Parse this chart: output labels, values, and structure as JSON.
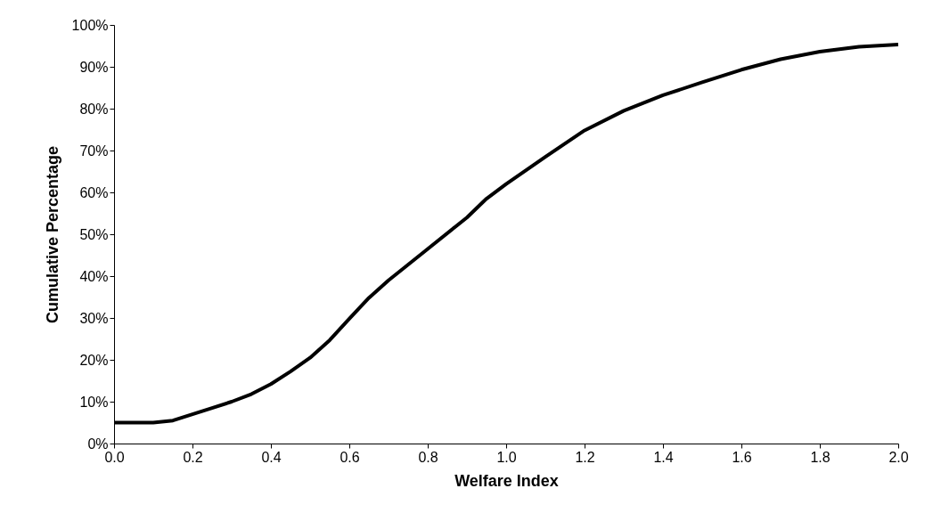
{
  "chart_data": {
    "type": "line",
    "xlabel": "Welfare Index",
    "ylabel": "Cumulative Percentage",
    "x": [
      0,
      0.05,
      0.1,
      0.15,
      0.2,
      0.25,
      0.3,
      0.35,
      0.4,
      0.45,
      0.5,
      0.55,
      0.6,
      0.65,
      0.7,
      0.8,
      0.9,
      0.95,
      1.0,
      1.1,
      1.2,
      1.3,
      1.4,
      1.5,
      1.6,
      1.7,
      1.8,
      1.9,
      2.0
    ],
    "series": [
      {
        "color": "#000000",
        "values": [
          5,
          5,
          5,
          5.5,
          7,
          8.5,
          10,
          11.8,
          14.2,
          17.2,
          20.5,
          24.7,
          29.8,
          34.8,
          39,
          46.5,
          54,
          58.5,
          62,
          68.5,
          74.8,
          79.5,
          83.2,
          86.3,
          89.3,
          91.8,
          93.6,
          94.8,
          95.3
        ]
      }
    ],
    "xlim": [
      0,
      2
    ],
    "xticks": [
      {
        "value": 0,
        "label": "0.0"
      },
      {
        "value": 0.2,
        "label": "0.2"
      },
      {
        "value": 0.4,
        "label": "0.4"
      },
      {
        "value": 0.6,
        "label": "0.6"
      },
      {
        "value": 0.8,
        "label": "0.8"
      },
      {
        "value": 1,
        "label": "1.0"
      },
      {
        "value": 1.2,
        "label": "1.2"
      },
      {
        "value": 1.4,
        "label": "1.4"
      },
      {
        "value": 1.6,
        "label": "1.6"
      },
      {
        "value": 1.8,
        "label": "1.8"
      },
      {
        "value": 2,
        "label": "2.0"
      }
    ],
    "ylim": [
      0,
      100
    ],
    "yticks": [
      {
        "value": 0,
        "label": "0%"
      },
      {
        "value": 10,
        "label": "10%"
      },
      {
        "value": 20,
        "label": "20%"
      },
      {
        "value": 30,
        "label": "30%"
      },
      {
        "value": 40,
        "label": "40%"
      },
      {
        "value": 50,
        "label": "50%"
      },
      {
        "value": 60,
        "label": "60%"
      },
      {
        "value": 70,
        "label": "70%"
      },
      {
        "value": 80,
        "label": "80%"
      },
      {
        "value": 90,
        "label": "90%"
      },
      {
        "value": 100,
        "label": "100%"
      }
    ],
    "grid": false,
    "marker": "none",
    "line_style": "solid"
  }
}
